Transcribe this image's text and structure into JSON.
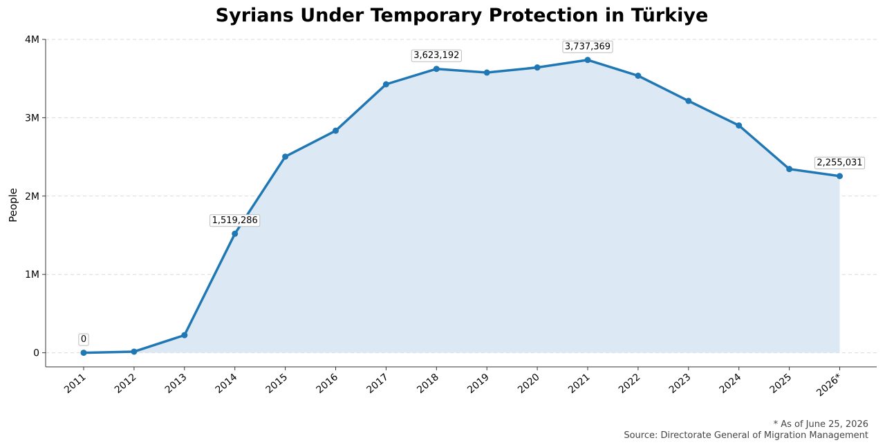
{
  "chart_data": {
    "type": "area",
    "title": "Syrians Under Temporary Protection in Türkiye",
    "xlabel": "",
    "ylabel": "People",
    "categories": [
      "2011",
      "2012",
      "2013",
      "2014",
      "2015",
      "2016",
      "2017",
      "2018",
      "2019",
      "2020",
      "2021",
      "2022",
      "2023",
      "2024",
      "2025",
      "2026*"
    ],
    "series": [
      {
        "values": [
          0,
          14237,
          224655,
          1519286,
          2503549,
          2834441,
          3426786,
          3623192,
          3576370,
          3641370,
          3737369,
          3535898,
          3214780,
          2901478,
          2345000,
          2255031
        ],
        "color": "#1f77b4",
        "fill_color": "#dce9f4"
      }
    ],
    "ylim": [
      -180000,
      4000000
    ],
    "yticks": [
      0,
      1000000,
      2000000,
      3000000,
      4000000
    ],
    "ytick_labels": [
      "0",
      "1M",
      "2M",
      "3M",
      "4M"
    ],
    "grid": "horizontal-dashed",
    "data_labels": [
      {
        "index": 0,
        "text": "0"
      },
      {
        "index": 3,
        "text": "1,519,286"
      },
      {
        "index": 7,
        "text": "3,623,192"
      },
      {
        "index": 10,
        "text": "3,737,369"
      },
      {
        "index": 15,
        "text": "2,255,031"
      }
    ],
    "footnotes": [
      "* As of June 25, 2026",
      "Source: Directorate General of Migration Management"
    ]
  }
}
